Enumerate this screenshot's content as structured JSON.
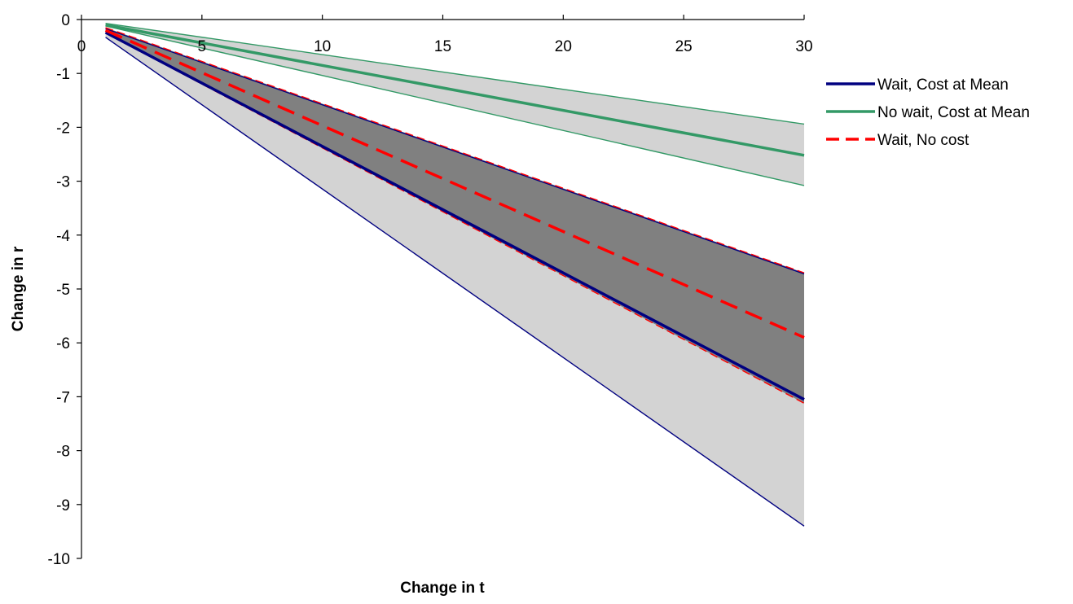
{
  "chart_data": {
    "type": "line",
    "title": "",
    "xlabel": "Change in t",
    "ylabel": "Change in r",
    "xlim": [
      0,
      30
    ],
    "ylim": [
      -10,
      0
    ],
    "x_ticks": [
      "0",
      "5",
      "10",
      "15",
      "20",
      "25",
      "30"
    ],
    "y_ticks": [
      "0",
      "-1",
      "-2",
      "-3",
      "-4",
      "-5",
      "-6",
      "-7",
      "-8",
      "-9",
      "-10"
    ],
    "grid": false,
    "legend_position": "right",
    "series": [
      {
        "name": "Wait, Cost at Mean",
        "color": "#000080",
        "style": "solid",
        "x": [
          1,
          30
        ],
        "y": [
          -0.24,
          -7.05
        ],
        "band": {
          "fill": "#d3d3d3",
          "stroke": "#000080",
          "lower": [
            -0.33,
            -9.4
          ],
          "upper": [
            -0.17,
            -4.72
          ]
        }
      },
      {
        "name": "No wait, Cost at Mean",
        "color": "#339966",
        "style": "solid",
        "x": [
          1,
          30
        ],
        "y": [
          -0.1,
          -2.52
        ],
        "band": {
          "fill": "#d3d3d3",
          "stroke": "#339966",
          "lower": [
            -0.12,
            -3.08
          ],
          "upper": [
            -0.07,
            -1.94
          ]
        }
      },
      {
        "name": "Wait, No cost",
        "color": "#ff0000",
        "style": "dashed",
        "x": [
          1,
          30
        ],
        "y": [
          -0.2,
          -5.9
        ],
        "band": {
          "fill": "#808080",
          "stroke": "#ff0000",
          "lower": [
            -0.25,
            -7.12
          ],
          "upper": [
            -0.15,
            -4.7
          ]
        }
      }
    ]
  }
}
